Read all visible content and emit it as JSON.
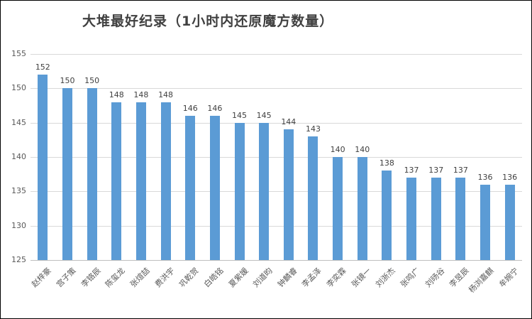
{
  "chart_data": {
    "type": "bar",
    "title": "大堆最好纪录（1小时内还原魔方数量）",
    "categories": [
      "赵梓豪",
      "宫子策",
      "李铬辰",
      "陈玺龙",
      "张煊喆",
      "费洪宇",
      "巩乾贺",
      "白皓铭",
      "夏紫媛",
      "刘道昀",
      "钟麟睿",
      "李孟泽",
      "李奕霖",
      "张镜一",
      "刘浙杰",
      "张鸣广",
      "刘旸谷",
      "李昱辰",
      "杨浏嘉麒",
      "牟婉宁"
    ],
    "values": [
      152,
      150,
      150,
      148,
      148,
      148,
      146,
      146,
      145,
      145,
      144,
      143,
      140,
      140,
      138,
      137,
      137,
      137,
      136,
      136
    ],
    "xlabel": "",
    "ylabel": "",
    "ylim": [
      125,
      155
    ],
    "yticks": [
      125,
      130,
      135,
      140,
      145,
      150,
      155
    ],
    "grid": true,
    "legend_position": "none",
    "data_labels": true,
    "category_label_rotation_deg": 45,
    "colors": {
      "bar": "#5B9BD5",
      "gridline": "#D9D9D9",
      "axis_line": "#BFBFBF",
      "title_text": "#404040",
      "tick_text": "#595959",
      "value_label_text": "#404040",
      "category_text": "#595959",
      "background": "#FFFFFF",
      "border": "#000000"
    }
  }
}
